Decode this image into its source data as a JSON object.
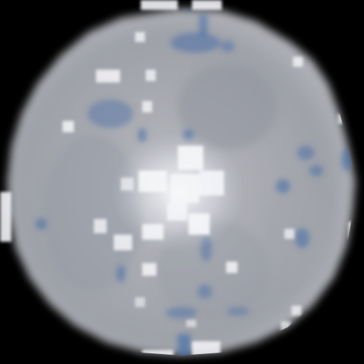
{
  "image": {
    "background_color": "#000000",
    "disc_color": "#a9abb1",
    "disc_shade_color": "#8f949f",
    "bright_spot_color": "#f4f5f8",
    "blue_patch_color": "#4a6fa8"
  }
}
